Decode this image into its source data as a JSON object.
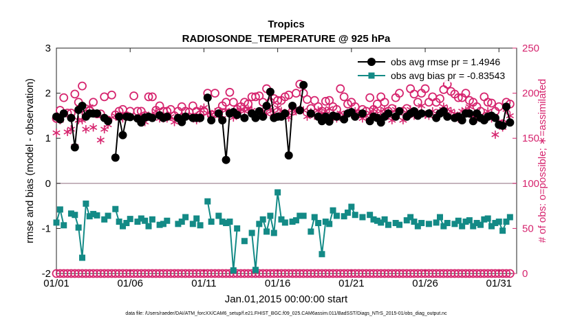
{
  "chart_data": {
    "type": "line",
    "title": "Tropics",
    "subtitle": "RADIOSONDE_TEMPERATURE @ 925 hPa",
    "xlabel": "Jan.01,2015 00:00:00 start",
    "ylabel": "rmse and bias (model - observation)",
    "ylabel_right": "# of obs: o=possible; ∗=assimilated",
    "xlim": [
      1,
      32.2
    ],
    "ylim": [
      -2,
      3
    ],
    "ylim_right": [
      0,
      250
    ],
    "x_ticks": [
      1,
      6,
      11,
      16,
      21,
      26,
      31
    ],
    "x_tick_labels": [
      "01/01",
      "01/06",
      "01/11",
      "01/16",
      "01/21",
      "01/26",
      "01/31"
    ],
    "y_ticks": [
      -2,
      -1,
      0,
      1,
      2,
      3
    ],
    "y_tick_labels": [
      "-2",
      "-1",
      "0",
      "1",
      "2",
      "3"
    ],
    "y_ticks_right": [
      0,
      50,
      100,
      150,
      200,
      250
    ],
    "y_tick_labels_right": [
      "0",
      "50",
      "100",
      "150",
      "200",
      "250"
    ],
    "zero_line": 0,
    "legend_position": "top-right",
    "colors": {
      "rmse": "#000000",
      "bias": "#138a86",
      "counts": "#d6246e",
      "zero_line": "#b39ca8"
    },
    "x": [
      1.0,
      1.25,
      1.5,
      1.75,
      2.0,
      2.25,
      2.5,
      2.75,
      3.0,
      3.25,
      3.5,
      3.75,
      4.0,
      4.25,
      4.5,
      4.75,
      5.0,
      5.25,
      5.5,
      5.75,
      6.0,
      6.25,
      6.5,
      6.75,
      7.0,
      7.25,
      7.5,
      7.75,
      8.0,
      8.25,
      8.5,
      8.75,
      9.0,
      9.25,
      9.5,
      9.75,
      10.0,
      10.25,
      10.5,
      10.75,
      11.0,
      11.25,
      11.5,
      11.75,
      12.0,
      12.25,
      12.5,
      12.75,
      13.0,
      13.25,
      13.5,
      13.75,
      14.0,
      14.25,
      14.5,
      14.75,
      15.0,
      15.25,
      15.5,
      15.75,
      16.0,
      16.25,
      16.5,
      16.75,
      17.0,
      17.25,
      17.5,
      17.75,
      18.0,
      18.25,
      18.5,
      18.75,
      19.0,
      19.25,
      19.5,
      19.75,
      20.0,
      20.25,
      20.5,
      20.75,
      21.0,
      21.25,
      21.5,
      21.75,
      22.0,
      22.25,
      22.5,
      22.75,
      23.0,
      23.25,
      23.5,
      23.75,
      24.0,
      24.25,
      24.5,
      24.75,
      25.0,
      25.25,
      25.5,
      25.75,
      26.0,
      26.25,
      26.5,
      26.75,
      27.0,
      27.25,
      27.5,
      27.75,
      28.0,
      28.25,
      28.5,
      28.75,
      29.0,
      29.25,
      29.5,
      29.75,
      30.0,
      30.25,
      30.5,
      30.75,
      31.0,
      31.25,
      31.5,
      31.75
    ],
    "series": [
      {
        "name": "obs avg rmse pr = 1.4946",
        "legend_label": "obs avg rmse pr = 1.4946",
        "marker": "filled-circle",
        "axis": "left",
        "values": [
          1.48,
          1.42,
          1.55,
          null,
          1.45,
          0.8,
          1.63,
          1.72,
          1.48,
          1.55,
          1.55,
          1.55,
          null,
          1.45,
          1.38,
          null,
          0.57,
          1.48,
          1.07,
          1.48,
          1.47,
          null,
          1.44,
          1.35,
          1.46,
          1.48,
          1.45,
          null,
          1.51,
          1.45,
          1.48,
          null,
          null,
          1.45,
          1.36,
          1.48,
          null,
          1.45,
          1.45,
          1.45,
          null,
          1.9,
          1.4,
          null,
          1.55,
          1.4,
          0.52,
          1.55,
          1.58,
          1.52,
          null,
          1.45,
          null,
          1.55,
          1.45,
          1.6,
          1.48,
          1.72,
          2.03,
          1.45,
          1.48,
          1.48,
          1.55,
          0.62,
          1.72,
          null,
          1.62,
          2.18,
          null,
          1.55,
          null,
          1.48,
          1.38,
          1.48,
          1.37,
          1.5,
          1.48,
          null,
          1.42,
          1.55,
          1.58,
          1.48,
          null,
          1.55,
          null,
          1.38,
          1.48,
          1.45,
          1.35,
          1.48,
          1.55,
          null,
          1.48,
          1.6,
          null,
          1.48,
          1.55,
          1.6,
          1.5,
          1.55,
          null,
          1.55,
          null,
          1.45,
          1.55,
          1.6,
          1.48,
          null,
          1.45,
          1.48,
          1.4,
          1.55,
          1.55,
          1.38,
          1.55,
          1.45,
          1.4,
          1.48,
          1.5,
          1.45,
          1.3,
          1.28,
          1.7,
          1.35
        ]
      },
      {
        "name": "obs avg bias pr = -0.83543",
        "legend_label": "obs avg bias pr = -0.83543",
        "marker": "filled-square",
        "axis": "left",
        "values": [
          -0.87,
          -0.58,
          -0.93,
          null,
          -0.67,
          -0.7,
          -0.98,
          -1.65,
          -0.45,
          -0.73,
          -0.68,
          -0.71,
          null,
          -0.8,
          -0.72,
          null,
          -0.57,
          -0.85,
          -0.95,
          -0.88,
          -0.79,
          null,
          -0.85,
          -0.78,
          -0.83,
          -0.95,
          -0.8,
          null,
          -0.92,
          -0.9,
          -0.83,
          null,
          null,
          -0.9,
          -0.85,
          -0.75,
          null,
          -0.9,
          -0.78,
          -0.93,
          null,
          -0.4,
          -0.85,
          null,
          -0.72,
          -0.85,
          -0.88,
          -0.85,
          -1.93,
          -1.0,
          null,
          -1.28,
          null,
          -1.1,
          -1.92,
          -0.9,
          -0.8,
          -1.07,
          -0.72,
          -1.1,
          -0.2,
          -0.8,
          -0.87,
          null,
          -0.85,
          -0.82,
          -0.72,
          -0.72,
          null,
          -1.07,
          -0.75,
          -0.88,
          -1.57,
          -0.85,
          -0.9,
          -0.6,
          -0.72,
          null,
          -0.73,
          -0.65,
          -0.52,
          -0.7,
          null,
          -0.75,
          null,
          -0.7,
          -0.8,
          -0.83,
          -0.87,
          -0.8,
          -0.92,
          null,
          -0.88,
          -0.92,
          null,
          -0.82,
          -0.75,
          -0.85,
          -0.95,
          -0.88,
          null,
          -0.9,
          null,
          -0.87,
          -0.75,
          -0.95,
          -0.88,
          null,
          -0.9,
          -0.83,
          -0.95,
          -0.85,
          -0.82,
          -0.95,
          -0.88,
          -0.92,
          -0.8,
          -0.78,
          -0.95,
          -0.88,
          -0.85,
          -1.05,
          -0.85,
          -0.75
        ]
      },
      {
        "name": "possible",
        "marker": "open-circle",
        "axis": "right",
        "values": [
          172,
          181,
          195,
          178,
          178,
          199,
          190,
          208,
          177,
          181,
          190,
          177,
          177,
          196,
          170,
          198,
          176,
          180,
          182,
          175,
          180,
          197,
          180,
          180,
          175,
          196,
          196,
          181,
          186,
          180,
          180,
          182,
          175,
          180,
          185,
          180,
          179,
          186,
          180,
          176,
          180,
          200,
          176,
          200,
          180,
          186,
          190,
          201,
          190,
          182,
          185,
          190,
          188,
          196,
          196,
          197,
          190,
          205,
          190,
          194,
          192,
          192,
          196,
          198,
          180,
          200,
          210,
          200,
          193,
          183,
          192,
          185,
          180,
          191,
          192,
          185,
          182,
          205,
          196,
          188,
          190,
          185,
          177,
          182,
          180,
          195,
          182,
          188,
          196,
          190,
          180,
          183,
          195,
          200,
          180,
          183,
          205,
          199,
          190,
          200,
          205,
          190,
          196,
          190,
          194,
          204,
          210,
          202,
          199,
          195,
          195,
          200,
          192,
          190,
          185,
          180,
          196,
          190,
          189,
          180,
          185,
          166,
          190,
          188
        ]
      },
      {
        "name": "assimilated",
        "marker": "asterisk",
        "axis": "right",
        "values": [
          156,
          170,
          null,
          157,
          160,
          141,
          170,
          170,
          160,
          185,
          162,
          null,
          148,
          160,
          165,
          null,
          175,
          172,
          172,
          175,
          174,
          null,
          172,
          173,
          168,
          175,
          175,
          180,
          172,
          172,
          172,
          174,
          168,
          172,
          174,
          175,
          175,
          176,
          170,
          181,
          184,
          178,
          176,
          179,
          175,
          172,
          181,
          178,
          173,
          179,
          182,
          180,
          182,
          181,
          175,
          180,
          180,
          177,
          182,
          178,
          184,
          180,
          178,
          173,
          181,
          180,
          182,
          181,
          174,
          179,
          175,
          181,
          177,
          180,
          183,
          175,
          172,
          178,
          176,
          178,
          177,
          180,
          178,
          172,
          175,
          178,
          182,
          175,
          180,
          182,
          175,
          170,
          182,
          180,
          170,
          176,
          182,
          175,
          178,
          186,
          176,
          175,
          180,
          175,
          180,
          185,
          182,
          180,
          177,
          172,
          180,
          181,
          185,
          175,
          172,
          175,
          170,
          180,
          172,
          154,
          167,
          162,
          182,
          175
        ]
      }
    ],
    "footnote": "data file: /Users/raeder/DAI/ATM_forcXX/CAM6_setup/f.e21.FHIST_BGC.f09_025.CAM6assim.011/BadSST/Diags_NTrS_2015-01/obs_diag_output.nc"
  }
}
